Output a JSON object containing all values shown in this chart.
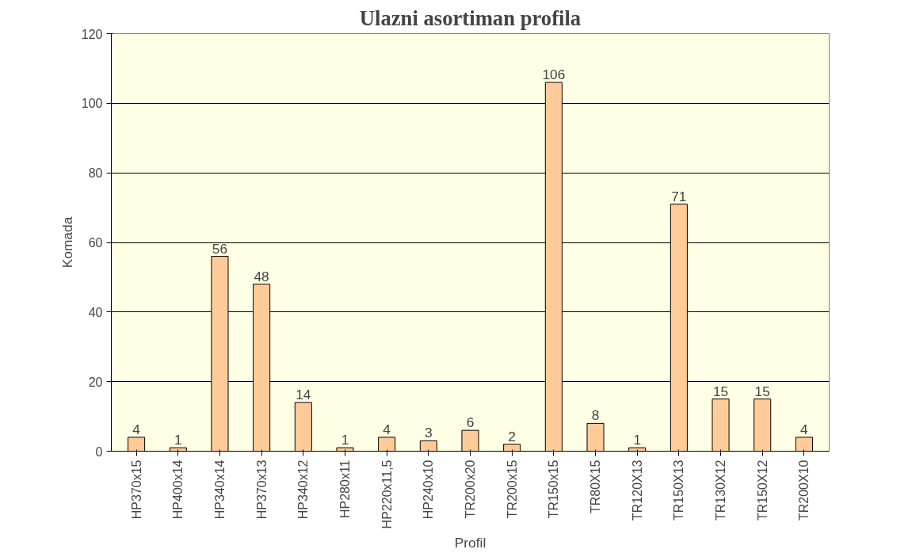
{
  "chart_data": {
    "type": "bar",
    "title": "Ulazni asortiman profila",
    "xlabel": "Profil",
    "ylabel": "Komada",
    "categories": [
      "HP370x15",
      "HP400x14",
      "HP340x14",
      "HP370x13",
      "HP340x12",
      "HP280x11",
      "HP220x11,5",
      "HP240x10",
      "TR200x20",
      "TR200x15",
      "TR150x15",
      "TR80X15",
      "TR120X13",
      "TR150X13",
      "TR130X12",
      "TR150X12",
      "TR200X10"
    ],
    "values": [
      4,
      1,
      56,
      48,
      14,
      1,
      4,
      3,
      6,
      2,
      106,
      8,
      1,
      71,
      15,
      15,
      4
    ],
    "color": "#ffcc99",
    "ylim": [
      0,
      120
    ],
    "yticks": [
      0,
      20,
      40,
      60,
      80,
      100,
      120
    ],
    "grid": "y",
    "data_labels": true
  }
}
